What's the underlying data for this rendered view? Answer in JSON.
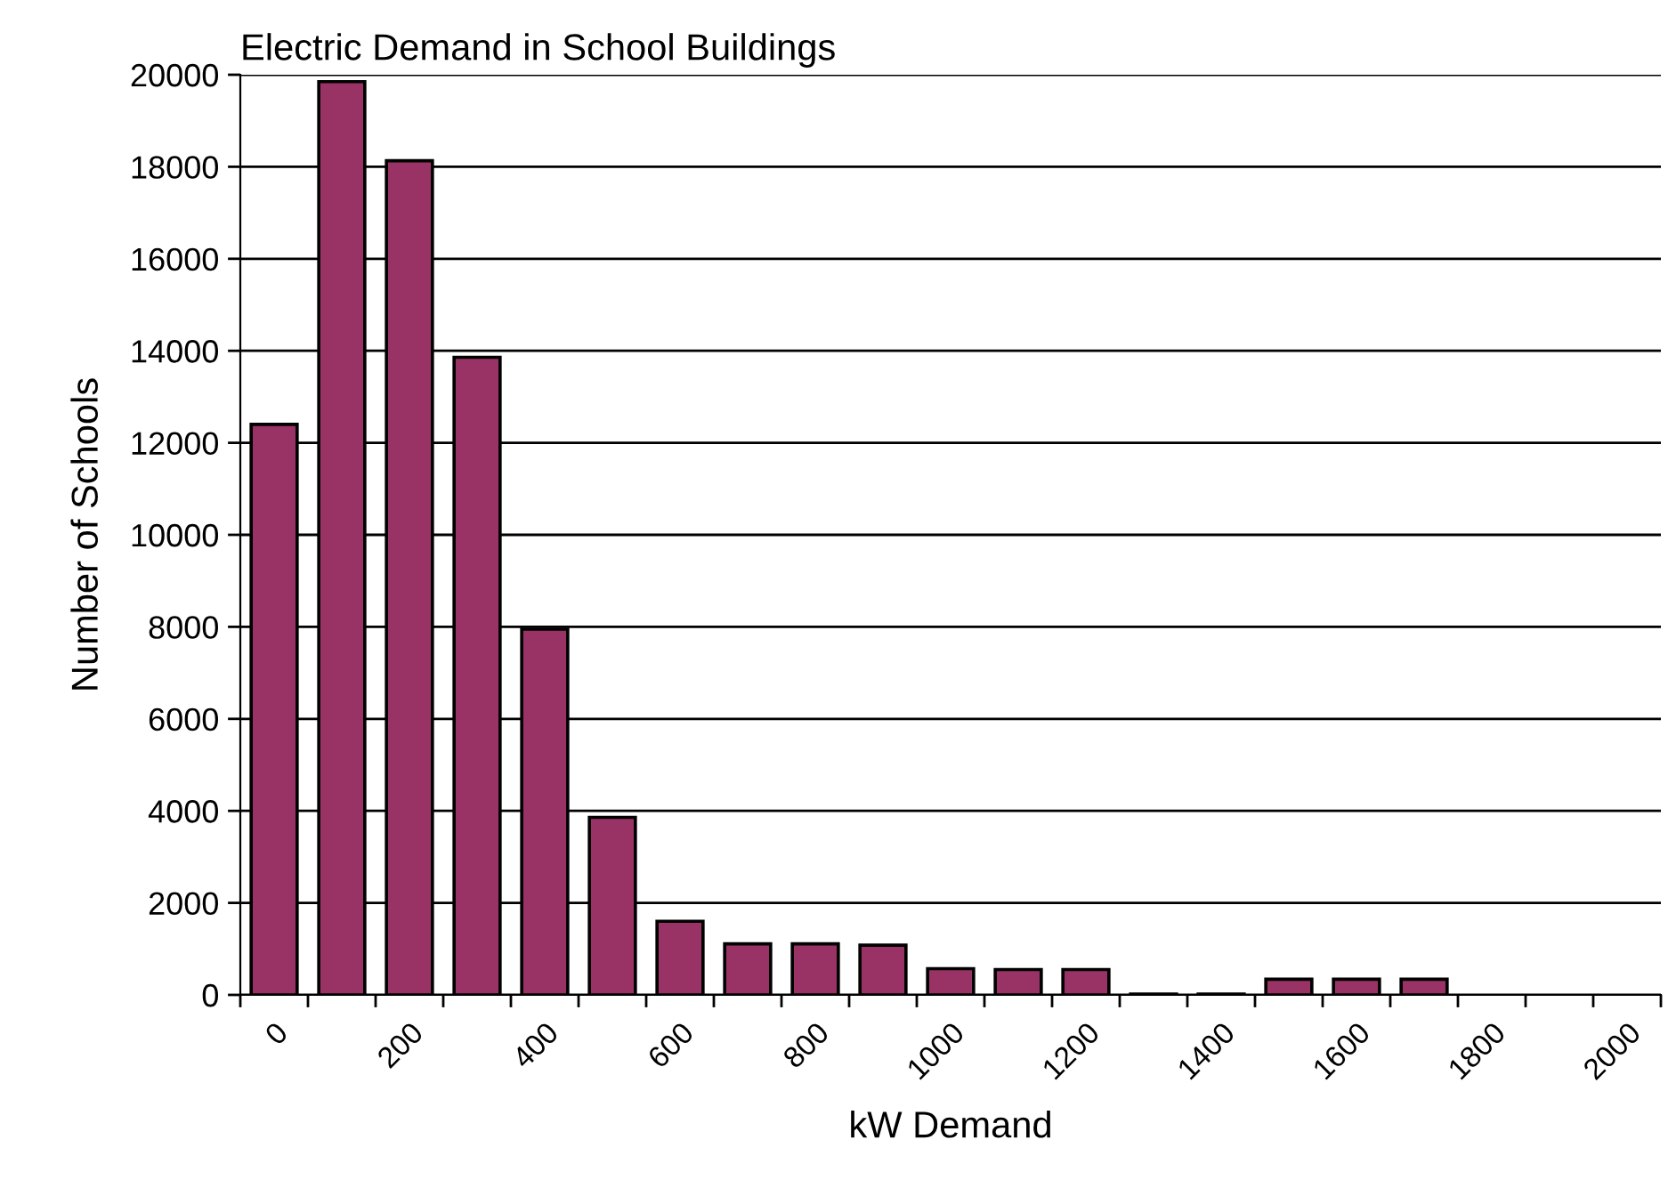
{
  "chart_data": {
    "type": "bar",
    "title": "Electric Demand in School Buildings",
    "xlabel": "kW Demand",
    "ylabel": "Number of Schools",
    "categories": [
      "0",
      null,
      "200",
      null,
      "400",
      null,
      "600",
      null,
      "800",
      null,
      "1000",
      null,
      "1200",
      null,
      "1400",
      null,
      "1600",
      null,
      "1800",
      null,
      "2000"
    ],
    "values": [
      12400,
      19850,
      18130,
      13860,
      7950,
      3860,
      1600,
      1110,
      1110,
      1080,
      570,
      550,
      550,
      20,
      20,
      340,
      340,
      340,
      null,
      null,
      null
    ],
    "color": "#993366",
    "ylim": [
      0,
      20000
    ],
    "yticks": [
      0,
      2000,
      4000,
      6000,
      8000,
      10000,
      12000,
      14000,
      16000,
      18000,
      20000
    ],
    "grid": "y"
  }
}
